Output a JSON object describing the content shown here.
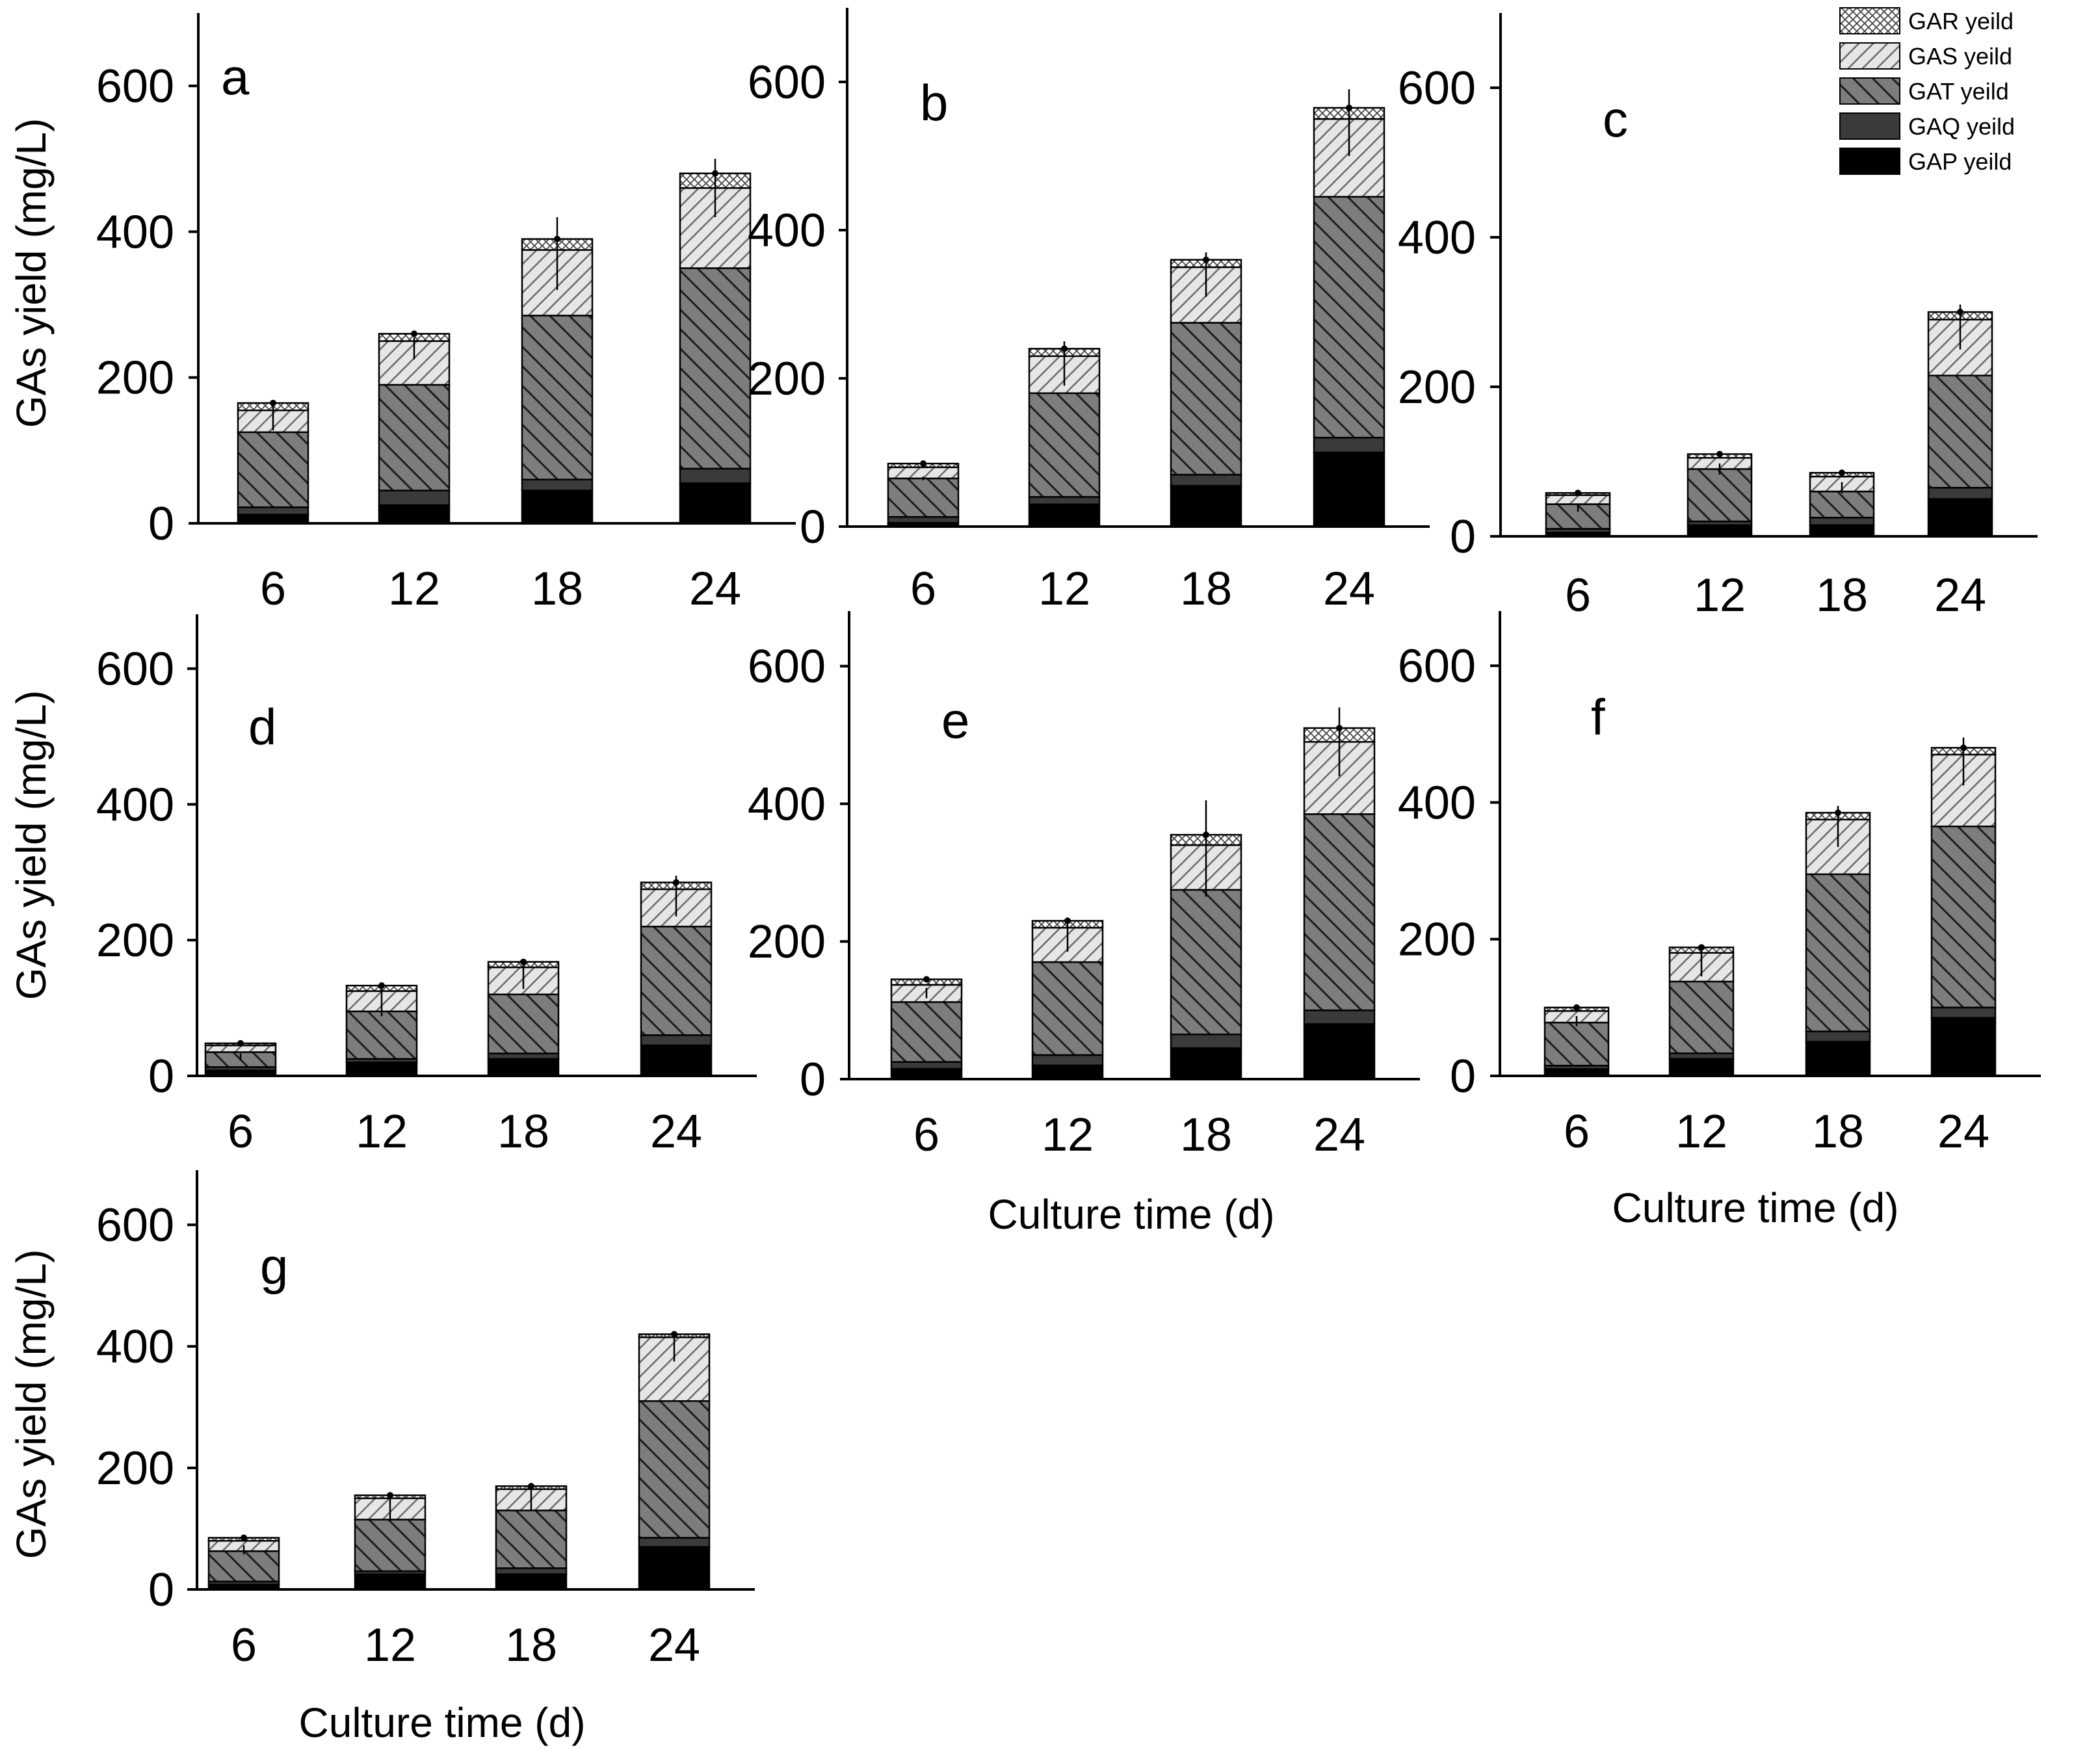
{
  "figure": {
    "legend": [
      {
        "key": "GAR",
        "label": "GAR yeild",
        "pattern": "crosshatch"
      },
      {
        "key": "GAS",
        "label": "GAS yeild",
        "pattern": "light-diag"
      },
      {
        "key": "GAT",
        "label": "GAT yeild",
        "pattern": "dark-diag"
      },
      {
        "key": "GAQ",
        "label": "GAQ yeild",
        "pattern": "dark-solid"
      },
      {
        "key": "GAP",
        "label": "GAP yeild",
        "pattern": "black-solid"
      }
    ]
  },
  "chart_data": [
    {
      "panel": "a",
      "type": "bar",
      "stacked": true,
      "title": "",
      "xlabel": "",
      "ylabel": "GAs yield (mg/L)",
      "ylim": [
        0,
        700
      ],
      "yticks": [
        "0",
        "200",
        "400",
        "600"
      ],
      "categories": [
        "6",
        "12",
        "18",
        "24"
      ],
      "series": [
        {
          "name": "GAP yeild",
          "values": [
            12,
            25,
            45,
            55
          ]
        },
        {
          "name": "GAQ yeild",
          "values": [
            10,
            20,
            15,
            20
          ]
        },
        {
          "name": "GAT yeild",
          "values": [
            103,
            145,
            225,
            275
          ]
        },
        {
          "name": "GAS yeild",
          "values": [
            30,
            60,
            90,
            110
          ]
        },
        {
          "name": "GAR yeild",
          "values": [
            10,
            10,
            15,
            20
          ]
        }
      ],
      "error": [
        35,
        30,
        100,
        80
      ]
    },
    {
      "panel": "b",
      "type": "bar",
      "stacked": true,
      "title": "",
      "xlabel": "",
      "ylabel": "",
      "ylim": [
        0,
        700
      ],
      "yticks": [
        "0",
        "200",
        "400",
        "600"
      ],
      "categories": [
        "6",
        "12",
        "18",
        "24"
      ],
      "series": [
        {
          "name": "GAP yeild",
          "values": [
            5,
            30,
            55,
            100
          ]
        },
        {
          "name": "GAQ yeild",
          "values": [
            8,
            10,
            15,
            20
          ]
        },
        {
          "name": "GAT yeild",
          "values": [
            52,
            140,
            205,
            325
          ]
        },
        {
          "name": "GAS yeild",
          "values": [
            15,
            50,
            75,
            105
          ]
        },
        {
          "name": "GAR yeild",
          "values": [
            5,
            10,
            10,
            15
          ]
        }
      ],
      "error": [
        5,
        60,
        60,
        90
      ]
    },
    {
      "panel": "c",
      "type": "bar",
      "stacked": true,
      "title": "",
      "xlabel": "",
      "ylabel": "",
      "ylim": [
        0,
        700
      ],
      "yticks": [
        "0",
        "200",
        "400",
        "600"
      ],
      "categories": [
        "6",
        "12",
        "18",
        "24"
      ],
      "series": [
        {
          "name": "GAP yeild",
          "values": [
            5,
            15,
            15,
            50
          ]
        },
        {
          "name": "GAQ yeild",
          "values": [
            5,
            5,
            10,
            15
          ]
        },
        {
          "name": "GAT yeild",
          "values": [
            33,
            70,
            35,
            150
          ]
        },
        {
          "name": "GAS yeild",
          "values": [
            12,
            15,
            20,
            75
          ]
        },
        {
          "name": "GAR yeild",
          "values": [
            3,
            5,
            5,
            10
          ]
        }
      ],
      "error": [
        10,
        15,
        15,
        60
      ]
    },
    {
      "panel": "d",
      "type": "bar",
      "stacked": true,
      "title": "",
      "xlabel": "",
      "ylabel": "GAs yield (mg/L)",
      "ylim": [
        0,
        680
      ],
      "yticks": [
        "0",
        "200",
        "400",
        "600"
      ],
      "categories": [
        "6",
        "12",
        "18",
        "24"
      ],
      "series": [
        {
          "name": "GAP yeild",
          "values": [
            8,
            20,
            25,
            45
          ]
        },
        {
          "name": "GAQ yeild",
          "values": [
            5,
            5,
            8,
            15
          ]
        },
        {
          "name": "GAT yeild",
          "values": [
            22,
            70,
            87,
            160
          ]
        },
        {
          "name": "GAS yeild",
          "values": [
            10,
            30,
            40,
            55
          ]
        },
        {
          "name": "GAR yeild",
          "values": [
            3,
            8,
            8,
            10
          ]
        }
      ],
      "error": [
        10,
        50,
        40,
        60
      ]
    },
    {
      "panel": "e",
      "type": "bar",
      "stacked": true,
      "title": "",
      "xlabel": "Culture time (d)",
      "ylabel": "",
      "ylim": [
        0,
        680
      ],
      "yticks": [
        "0",
        "200",
        "400",
        "600"
      ],
      "categories": [
        "6",
        "12",
        "18",
        "24"
      ],
      "series": [
        {
          "name": "GAP yeild",
          "values": [
            15,
            20,
            45,
            80
          ]
        },
        {
          "name": "GAQ yeild",
          "values": [
            10,
            15,
            20,
            20
          ]
        },
        {
          "name": "GAT yeild",
          "values": [
            87,
            135,
            210,
            285
          ]
        },
        {
          "name": "GAS yeild",
          "values": [
            25,
            50,
            65,
            105
          ]
        },
        {
          "name": "GAR yeild",
          "values": [
            8,
            10,
            15,
            20
          ]
        }
      ],
      "error": [
        15,
        50,
        140,
        100
      ]
    },
    {
      "panel": "f",
      "type": "bar",
      "stacked": true,
      "title": "",
      "xlabel": "Culture time (d)",
      "ylabel": "",
      "ylim": [
        0,
        680
      ],
      "yticks": [
        "0",
        "200",
        "400",
        "600"
      ],
      "categories": [
        "6",
        "12",
        "18",
        "24"
      ],
      "series": [
        {
          "name": "GAP yeild",
          "values": [
            10,
            25,
            50,
            85
          ]
        },
        {
          "name": "GAQ yeild",
          "values": [
            5,
            8,
            15,
            15
          ]
        },
        {
          "name": "GAT yeild",
          "values": [
            63,
            105,
            230,
            265
          ]
        },
        {
          "name": "GAS yeild",
          "values": [
            17,
            42,
            80,
            105
          ]
        },
        {
          "name": "GAR yeild",
          "values": [
            5,
            8,
            10,
            10
          ]
        }
      ],
      "error": [
        15,
        45,
        60,
        70
      ]
    },
    {
      "panel": "g",
      "type": "bar",
      "stacked": true,
      "title": "",
      "xlabel": "Culture time (d)",
      "ylabel": "GAs yield (mg/L)",
      "ylim": [
        0,
        690
      ],
      "yticks": [
        "0",
        "200",
        "400",
        "600"
      ],
      "categories": [
        "6",
        "12",
        "18",
        "24"
      ],
      "series": [
        {
          "name": "GAP yeild",
          "values": [
            8,
            25,
            25,
            70
          ]
        },
        {
          "name": "GAQ yeild",
          "values": [
            5,
            5,
            10,
            15
          ]
        },
        {
          "name": "GAT yeild",
          "values": [
            50,
            85,
            95,
            225
          ]
        },
        {
          "name": "GAS yeild",
          "values": [
            17,
            35,
            35,
            105
          ]
        },
        {
          "name": "GAR yeild",
          "values": [
            5,
            5,
            5,
            5
          ]
        }
      ],
      "error": [
        15,
        40,
        40,
        50
      ]
    }
  ]
}
